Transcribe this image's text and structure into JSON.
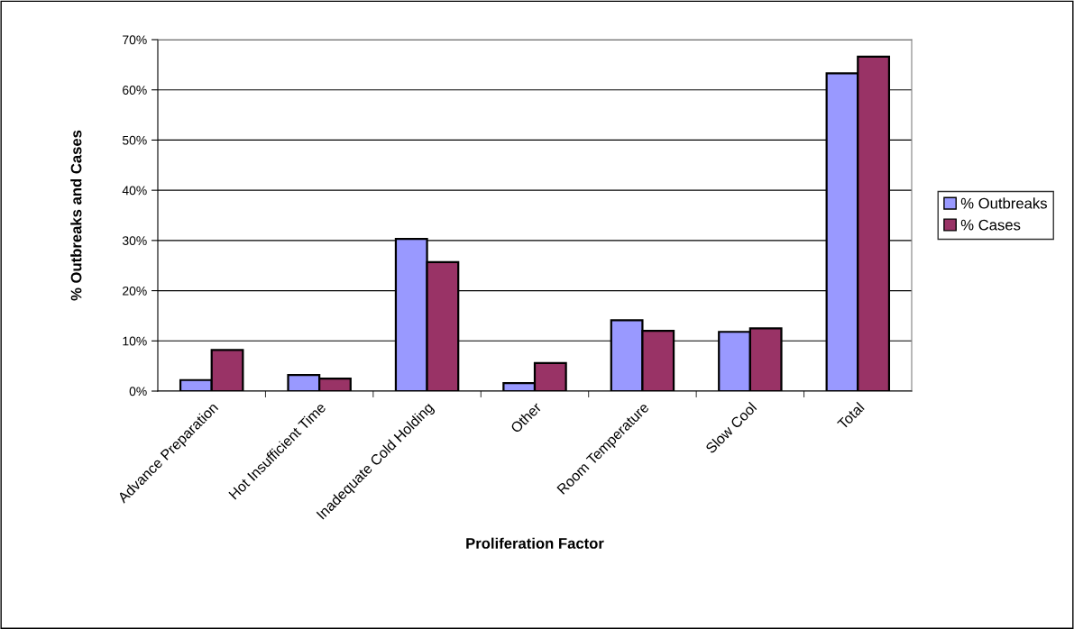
{
  "chart_data": {
    "type": "bar",
    "xlabel": "Proliferation Factor",
    "ylabel": "% Outbreaks and Cases",
    "categories": [
      "Advance Preparation",
      "Hot Insufficient Time",
      "Inadequate Cold Holding",
      "Other",
      "Room Temperature",
      "Slow Cool",
      "Total"
    ],
    "series": [
      {
        "name": "% Outbreaks",
        "color": "#9999ff",
        "values": [
          2.2,
          3.2,
          30.3,
          1.6,
          14.1,
          11.8,
          63.3
        ]
      },
      {
        "name": "% Cases",
        "color": "#993366",
        "values": [
          8.2,
          2.5,
          25.7,
          5.6,
          12.0,
          12.5,
          66.6
        ]
      }
    ],
    "ylim": [
      0,
      70
    ],
    "yticks": [
      {
        "value": 0,
        "label": "0%"
      },
      {
        "value": 10,
        "label": "10%"
      },
      {
        "value": 20,
        "label": "20%"
      },
      {
        "value": 30,
        "label": "30%"
      },
      {
        "value": 40,
        "label": "40%"
      },
      {
        "value": 50,
        "label": "50%"
      },
      {
        "value": 60,
        "label": "60%"
      },
      {
        "value": 70,
        "label": "70%"
      }
    ],
    "grid": "y",
    "legend": "right"
  }
}
